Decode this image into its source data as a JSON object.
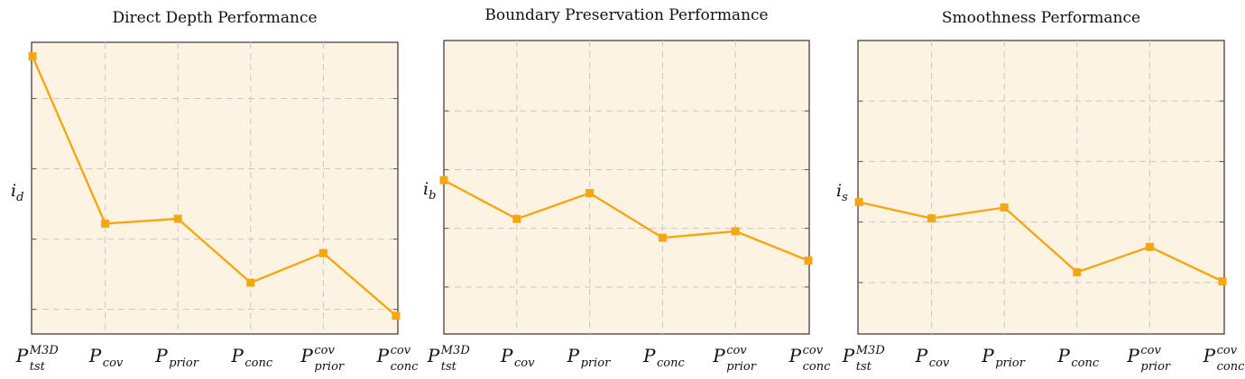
{
  "chart_data": [
    {
      "type": "line",
      "title": "Direct Depth Performance",
      "ylabel": {
        "base": "i",
        "sub": "d"
      },
      "categories": [
        {
          "base": "P",
          "sub": "tst",
          "sup": "M3D"
        },
        {
          "base": "P",
          "sub": "cov",
          "sup": ""
        },
        {
          "base": "P",
          "sub": "prior",
          "sup": ""
        },
        {
          "base": "P",
          "sub": "conc",
          "sup": ""
        },
        {
          "base": "P",
          "sub": "prior",
          "sup": "cov"
        },
        {
          "base": "P",
          "sub": "conc",
          "sup": "cov"
        }
      ],
      "values": [
        3.6,
        1.22,
        1.29,
        0.38,
        0.8,
        -0.09
      ],
      "ylim": [
        -0.35,
        3.8
      ],
      "yticks": [
        0,
        1,
        2,
        3
      ],
      "grid": true,
      "color": "#f5a712"
    },
    {
      "type": "line",
      "title": "Boundary Preservation Performance",
      "ylabel": {
        "base": "i",
        "sub": "b"
      },
      "categories": [
        {
          "base": "P",
          "sub": "tst",
          "sup": "M3D"
        },
        {
          "base": "P",
          "sub": "cov",
          "sup": ""
        },
        {
          "base": "P",
          "sub": "prior",
          "sup": ""
        },
        {
          "base": "P",
          "sub": "conc",
          "sup": ""
        },
        {
          "base": "P",
          "sub": "prior",
          "sup": "cov"
        },
        {
          "base": "P",
          "sub": "conc",
          "sup": "cov"
        }
      ],
      "values": [
        2.82,
        2.16,
        2.6,
        1.84,
        1.95,
        1.45
      ],
      "ylim": [
        0.2,
        5.2
      ],
      "yticks": [
        1,
        2,
        3,
        4
      ],
      "grid": true,
      "color": "#f5a712"
    },
    {
      "type": "line",
      "title": "Smoothness Performance",
      "ylabel": {
        "base": "i",
        "sub": "s"
      },
      "categories": [
        {
          "base": "P",
          "sub": "tst",
          "sup": "M3D"
        },
        {
          "base": "P",
          "sub": "cov",
          "sup": ""
        },
        {
          "base": "P",
          "sub": "prior",
          "sup": ""
        },
        {
          "base": "P",
          "sub": "conc",
          "sup": ""
        },
        {
          "base": "P",
          "sub": "prior",
          "sup": "cov"
        },
        {
          "base": "P",
          "sub": "conc",
          "sup": "cov"
        }
      ],
      "values": [
        2.33,
        2.06,
        2.24,
        1.17,
        1.59,
        1.02
      ],
      "ylim": [
        0.15,
        5.0
      ],
      "yticks": [
        1,
        2,
        3,
        4
      ],
      "grid": true,
      "color": "#f5a712"
    }
  ]
}
